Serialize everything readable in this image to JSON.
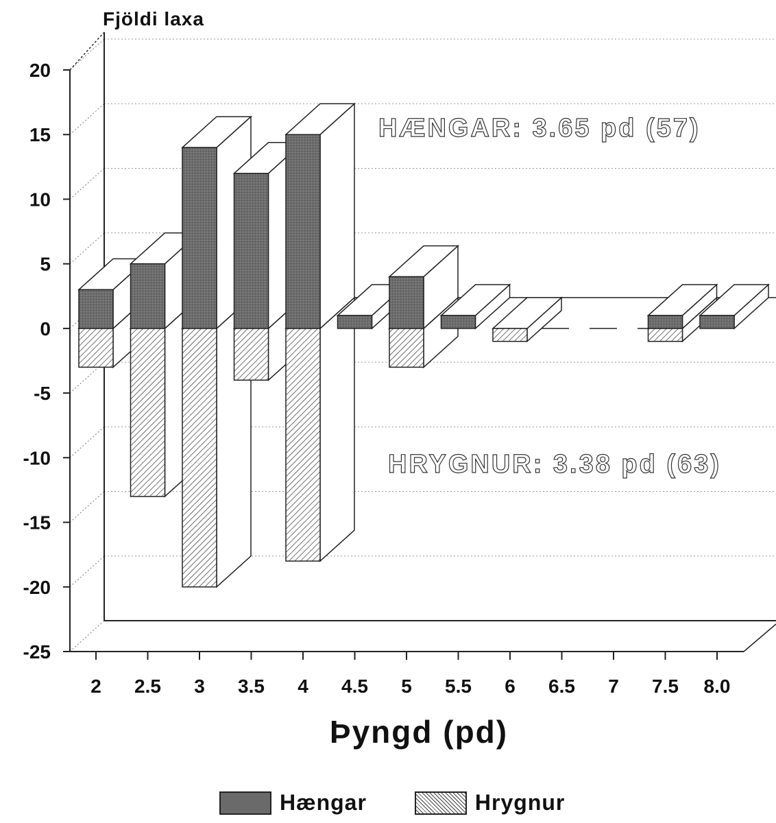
{
  "chart_data": {
    "type": "bar",
    "title": "",
    "ylabel": "Fjöldi laxa",
    "xlabel": "Þyngd (pd)",
    "categories": [
      "2",
      "2.5",
      "3",
      "3.5",
      "4",
      "4.5",
      "5",
      "5.5",
      "6",
      "6.5",
      "7",
      "7.5",
      "8.0"
    ],
    "series": [
      {
        "name": "Hængar",
        "values": [
          3,
          5,
          14,
          12,
          15,
          1,
          4,
          1,
          0,
          0,
          0,
          1,
          1
        ],
        "color": "#6a6a6a"
      },
      {
        "name": "Hrygnur",
        "values": [
          -3,
          -13,
          -20,
          -4,
          -18,
          0,
          -3,
          0,
          -1,
          0,
          0,
          -1,
          0
        ],
        "color": "#ffffff"
      }
    ],
    "yticks": [
      "20",
      "15",
      "10",
      "5",
      "0",
      "-5",
      "-10",
      "-15",
      "-20",
      "-25"
    ],
    "ylim": [
      -25,
      20
    ],
    "grid": true,
    "legend": "bottom",
    "annotations": [
      "HÆNGAR: 3.65 pd (57)",
      "HRYGNUR: 3.38 pd (63)"
    ]
  }
}
